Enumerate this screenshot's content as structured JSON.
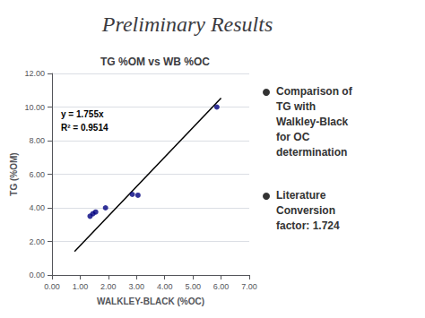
{
  "title": "Preliminary Results",
  "annotations": [
    [
      "Comparison of",
      "TG with",
      "Walkley-Black",
      "for OC",
      "determination"
    ],
    [
      "Literature",
      "Conversion",
      "factor: 1.724"
    ]
  ],
  "chart_data": {
    "type": "scatter",
    "title": "TG %OM vs WB %OC",
    "xlabel": "WALKLEY-BLACK (%OC)",
    "ylabel": "TG (%OM)",
    "annotations": [
      "y = 1.755x",
      "R² = 0.9514"
    ],
    "series": [
      {
        "type": "scatter",
        "color": "#000080",
        "x": [
          1.35,
          1.45,
          1.55,
          1.9,
          2.85,
          3.05,
          5.85
        ],
        "values": [
          3.5,
          3.65,
          3.75,
          4.0,
          4.8,
          4.75,
          10.0
        ]
      },
      {
        "type": "line",
        "color": "#000000",
        "x": [
          0.8,
          6.0
        ],
        "values": [
          1.404,
          10.53
        ]
      }
    ],
    "xlim": [
      0.0,
      7.0
    ],
    "ylim": [
      0.0,
      12.0
    ],
    "xticks": [
      {
        "value": 0,
        "label": "0.00"
      },
      {
        "value": 1,
        "label": "1.00"
      },
      {
        "value": 2,
        "label": "2.00"
      },
      {
        "value": 3,
        "label": "3.00"
      },
      {
        "value": 4,
        "label": "4.00"
      },
      {
        "value": 5,
        "label": "5.00"
      },
      {
        "value": 6,
        "label": "6.00"
      },
      {
        "value": 7,
        "label": "7.00"
      }
    ],
    "yticks": [
      {
        "value": 0,
        "label": "0.00"
      },
      {
        "value": 2,
        "label": "2.00"
      },
      {
        "value": 4,
        "label": "4.00"
      },
      {
        "value": 6,
        "label": "6.00"
      },
      {
        "value": 8,
        "label": "8.00"
      },
      {
        "value": 10,
        "label": "10.00"
      },
      {
        "value": 12,
        "label": "12.00"
      }
    ],
    "grid": true
  }
}
